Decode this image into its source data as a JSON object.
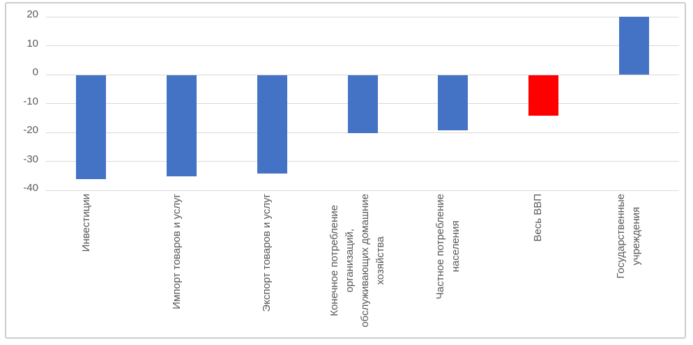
{
  "chart_data": {
    "type": "bar",
    "title": "",
    "categories": [
      "Инвестиции",
      "Импорт товаров и услуг",
      "Экспорт товаров и услуг",
      "Конечное потребление\nорганизаций,\nобслуживающих домашние\nхозяйства",
      "Частное потребление\nнаселения",
      "Весь ВВП",
      "Государственные\nучреждения"
    ],
    "values": [
      -36,
      -35,
      -34,
      -20,
      -19,
      -14,
      20
    ],
    "bar_colors": [
      "#4472C4",
      "#4472C4",
      "#4472C4",
      "#4472C4",
      "#4472C4",
      "#FF0000",
      "#4472C4"
    ],
    "yticks": [
      20,
      10,
      0,
      -10,
      -20,
      -30,
      -40
    ],
    "ylim": [
      -40,
      20
    ],
    "xlabel": "",
    "ylabel": "",
    "grid": true,
    "legend": false
  },
  "colors": {
    "bar_blue": "#4472C4",
    "bar_red": "#FF0000",
    "gridline": "#d9d9d9",
    "axis_text": "#595959",
    "frame_border": "#cdcdcd",
    "background": "#ffffff"
  }
}
